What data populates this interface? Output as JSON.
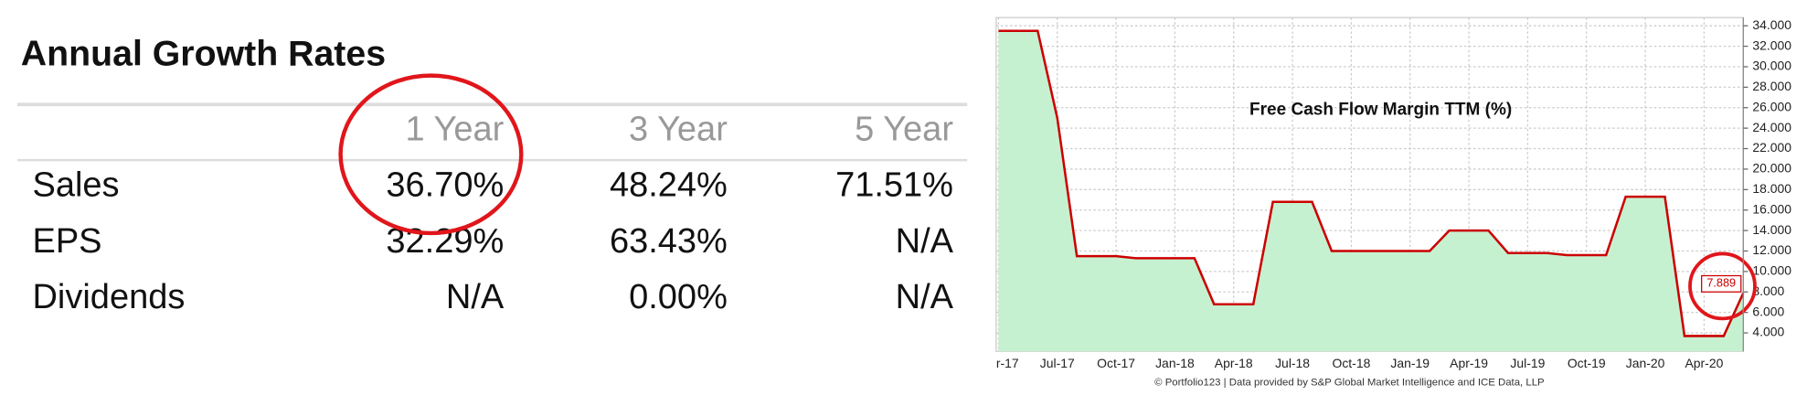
{
  "table": {
    "title": "Annual Growth Rates",
    "columns": [
      "1 Year",
      "3 Year",
      "5 Year"
    ],
    "rows": [
      [
        "Sales",
        "36.70%",
        "48.24%",
        "71.51%"
      ],
      [
        "EPS",
        "32.29%",
        "63.43%",
        "N/A"
      ],
      [
        "Dividends",
        "N/A",
        "0.00%",
        "N/A"
      ]
    ]
  },
  "chart_data": {
    "type": "line",
    "title": "Free Cash Flow Margin TTM (%)",
    "footer": "© Portfolio123 | Data provided by S&P Global Market Intelligence and ICE Data, LLP",
    "categories": [
      "r-17",
      null,
      null,
      "Jul-17",
      null,
      null,
      "Oct-17",
      null,
      null,
      "Jan-18",
      null,
      null,
      "Apr-18",
      null,
      null,
      "Jul-18",
      null,
      null,
      "Oct-18",
      null,
      null,
      "Jan-19",
      null,
      null,
      "Apr-19",
      null,
      null,
      "Jul-19",
      null,
      null,
      "Oct-19",
      null,
      null,
      "Jan-20",
      null,
      null,
      "Apr-20",
      null,
      null
    ],
    "series": [
      {
        "name": "Free Cash Flow Margin TTM",
        "color": "#cc0000",
        "fill": "#c6f1d0",
        "values": [
          33.5,
          33.5,
          33.5,
          25,
          11.5,
          11.5,
          11.5,
          11.3,
          11.3,
          11.3,
          11.3,
          6.8,
          6.8,
          6.8,
          16.8,
          16.8,
          16.8,
          12,
          12,
          12,
          12,
          12,
          12,
          14,
          14,
          14,
          11.8,
          11.8,
          11.8,
          11.6,
          11.6,
          11.6,
          17.3,
          17.3,
          17.3,
          3.7,
          3.7,
          3.7,
          7.889
        ]
      }
    ],
    "label_last": true,
    "ylim": [
      2.2,
      34.8
    ],
    "yticks": [
      {
        "value": 4,
        "label": "4.000"
      },
      {
        "value": 6,
        "label": "6.000"
      },
      {
        "value": 8,
        "label": "8.000"
      },
      {
        "value": 10,
        "label": "10.000"
      },
      {
        "value": 12,
        "label": "12.000"
      },
      {
        "value": 14,
        "label": "14.000"
      },
      {
        "value": 16,
        "label": "16.000"
      },
      {
        "value": 18,
        "label": "18.000"
      },
      {
        "value": 20,
        "label": "20.000"
      },
      {
        "value": 22,
        "label": "22.000"
      },
      {
        "value": 24,
        "label": "24.000"
      },
      {
        "value": 26,
        "label": "26.000"
      },
      {
        "value": 28,
        "label": "28.000"
      },
      {
        "value": 30,
        "label": "30.000"
      },
      {
        "value": 32,
        "label": "32.000"
      },
      {
        "value": 34,
        "label": "34.000"
      }
    ],
    "grid": true
  }
}
